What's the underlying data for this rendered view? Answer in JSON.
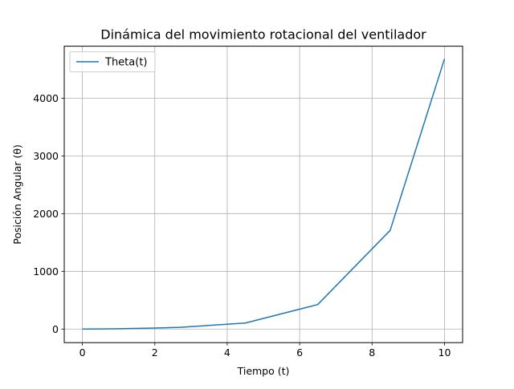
{
  "chart_data": {
    "type": "line",
    "title": "Dinámica del movimiento rotacional del ventilador",
    "xlabel": "Tiempo (t)",
    "ylabel": "Posición Angular (θ)",
    "xlim": [
      -0.5,
      10.5
    ],
    "ylim": [
      -235,
      4900
    ],
    "xticks": [
      0,
      2,
      4,
      6,
      8,
      10
    ],
    "yticks": [
      0,
      1000,
      2000,
      3000,
      4000
    ],
    "grid": true,
    "legend_position": "top-left",
    "series": [
      {
        "name": "Theta(t)",
        "color": "#1f77b4",
        "x": [
          0,
          1,
          2,
          2.7,
          4.5,
          6.5,
          8.5,
          10
        ],
        "y": [
          0,
          5,
          18,
          30,
          105,
          425,
          1710,
          4680
        ]
      }
    ]
  }
}
